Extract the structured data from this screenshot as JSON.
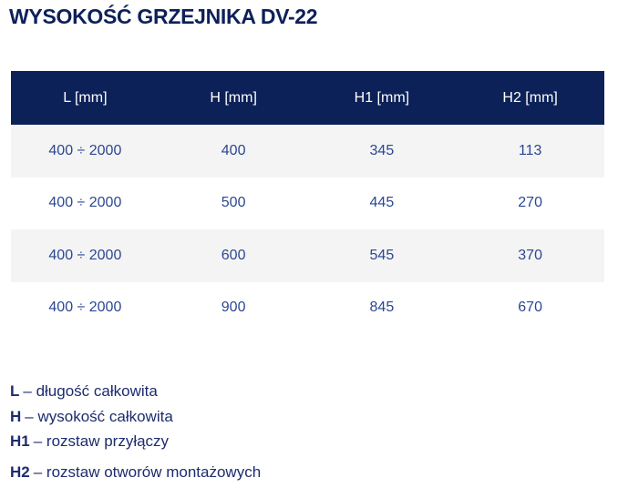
{
  "page": {
    "title": "WYSOKOŚĆ GRZEJNIKA DV-22"
  },
  "table": {
    "columns": [
      "L [mm]",
      "H [mm]",
      "H1 [mm]",
      "H2 [mm]"
    ],
    "rows": [
      [
        "400 ÷ 2000",
        "400",
        "345",
        "113"
      ],
      [
        "400 ÷ 2000",
        "500",
        "445",
        "270"
      ],
      [
        "400 ÷ 2000",
        "600",
        "545",
        "370"
      ],
      [
        "400 ÷ 2000",
        "900",
        "845",
        "670"
      ]
    ]
  },
  "legend": {
    "items": [
      {
        "term": "L",
        "desc": "– długość całkowita"
      },
      {
        "term": "H",
        "desc": "– wysokość całkowita"
      },
      {
        "term": "H1",
        "desc": "– rozstaw przyłączy"
      },
      {
        "term": "H2",
        "desc": "– rozstaw otworów montażowych"
      }
    ]
  },
  "colors": {
    "header_bg": "#0c2157",
    "header_text": "#ffffff",
    "row_alt_bg": "#f4f4f4",
    "row_bg": "#ffffff",
    "cell_text": "#2b4793",
    "title_text": "#0d2059",
    "legend_text": "#1d2c6e",
    "page_bg": "#ffffff"
  }
}
